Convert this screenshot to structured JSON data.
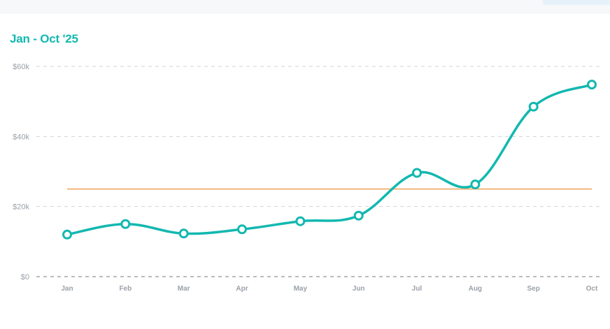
{
  "header": {
    "title": "Jan - Oct '25"
  },
  "colors": {
    "series": "#12b8b0",
    "reference": "#f0a860",
    "grid": "#cfd3d8",
    "axis_text": "#9aa1a9"
  },
  "chart_data": {
    "type": "line",
    "title": "Jan - Oct '25",
    "categories": [
      "Jan",
      "Feb",
      "Mar",
      "Apr",
      "May",
      "Jun",
      "Jul",
      "Aug",
      "Sep",
      "Oct"
    ],
    "series": [
      {
        "values": [
          12000,
          15000,
          12300,
          13500,
          15800,
          17400,
          29600,
          26300,
          48500,
          54800
        ]
      }
    ],
    "reference_line": {
      "value": 25000
    },
    "ylim": [
      0,
      60000
    ],
    "yticks": [
      0,
      20000,
      40000,
      60000
    ],
    "ytick_labels": [
      "$0",
      "$20k",
      "$40k",
      "$60k"
    ],
    "grid": true,
    "smooth": true
  }
}
